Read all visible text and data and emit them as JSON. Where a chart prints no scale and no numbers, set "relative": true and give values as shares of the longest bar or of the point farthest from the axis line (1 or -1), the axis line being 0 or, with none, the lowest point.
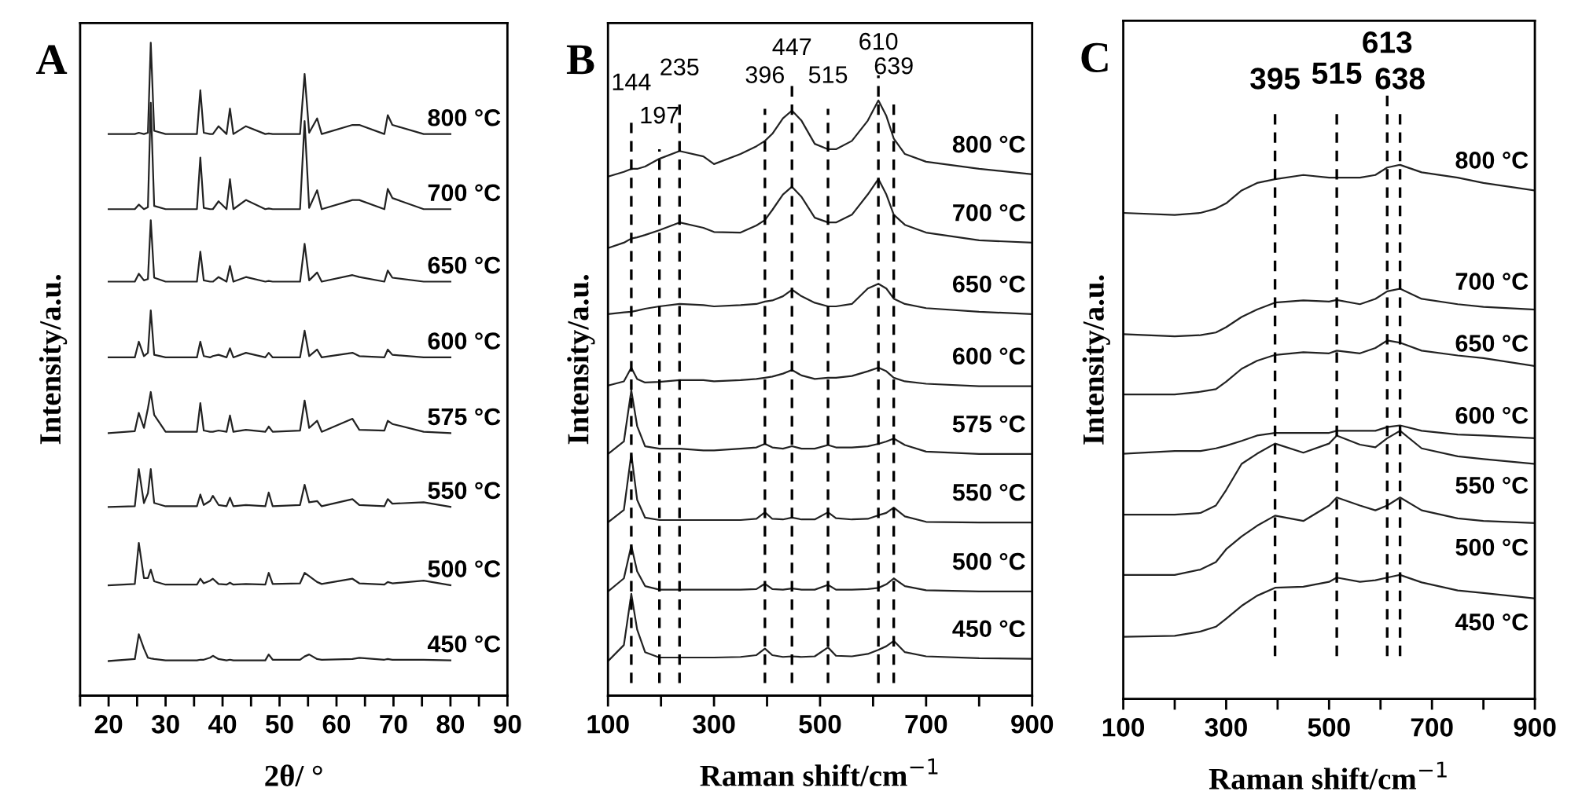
{
  "chart_data": [
    {
      "type": "line",
      "title": "A",
      "xlabel": "2θ/ °",
      "ylabel": "Intensity/a.u.",
      "relative": true,
      "tick_labels": "x",
      "xlim": [
        15,
        90
      ],
      "xticks": [
        {
          "value": 15,
          "label": null
        },
        20,
        {
          "value": 25,
          "label": null
        },
        30,
        {
          "value": 35,
          "label": null
        },
        40,
        {
          "value": 45,
          "label": null
        },
        50,
        {
          "value": 55,
          "label": null
        },
        60,
        {
          "value": 65,
          "label": null
        },
        70,
        {
          "value": 75,
          "label": null
        },
        80,
        {
          "value": 85,
          "label": null
        },
        90
      ],
      "x": [
        20,
        24.6,
        25.3,
        26.2,
        26.9,
        27.4,
        28.0,
        30,
        35.5,
        36.1,
        36.7,
        37.8,
        38.3,
        39.3,
        40.7,
        41.3,
        41.9,
        44.1,
        47.5,
        48.1,
        48.8,
        53.6,
        54.4,
        55.2,
        56.6,
        57.4,
        62.8,
        64.0,
        68.4,
        69.0,
        69.8,
        75.3,
        80
      ],
      "series": [
        {
          "name": "800 °C",
          "color": "#222222",
          "values": [
            0.86,
            0.86,
            0.862,
            0.86,
            0.862,
            1.0,
            0.865,
            0.86,
            0.86,
            0.927,
            0.862,
            0.86,
            0.86,
            0.872,
            0.86,
            0.899,
            0.86,
            0.872,
            0.86,
            0.861,
            0.86,
            0.86,
            0.952,
            0.862,
            0.884,
            0.86,
            0.874,
            0.874,
            0.86,
            0.889,
            0.874,
            0.86,
            0.86
          ]
        },
        {
          "name": "700 °C",
          "color": "#222222",
          "values": [
            0.745,
            0.745,
            0.752,
            0.745,
            0.748,
            0.908,
            0.75,
            0.745,
            0.745,
            0.824,
            0.747,
            0.745,
            0.745,
            0.757,
            0.745,
            0.791,
            0.745,
            0.759,
            0.745,
            0.746,
            0.745,
            0.745,
            0.88,
            0.747,
            0.774,
            0.745,
            0.759,
            0.759,
            0.745,
            0.776,
            0.762,
            0.745,
            0.745
          ]
        },
        {
          "name": "650 °C",
          "color": "#222222",
          "values": [
            0.634,
            0.634,
            0.646,
            0.636,
            0.638,
            0.728,
            0.64,
            0.634,
            0.634,
            0.68,
            0.636,
            0.634,
            0.634,
            0.641,
            0.634,
            0.658,
            0.634,
            0.641,
            0.634,
            0.635,
            0.634,
            0.634,
            0.692,
            0.636,
            0.648,
            0.634,
            0.644,
            0.641,
            0.634,
            0.651,
            0.64,
            0.634,
            0.634
          ]
        },
        {
          "name": "600 °C",
          "color": "#222222",
          "values": [
            0.518,
            0.518,
            0.542,
            0.52,
            0.525,
            0.59,
            0.522,
            0.518,
            0.518,
            0.542,
            0.52,
            0.518,
            0.52,
            0.522,
            0.518,
            0.532,
            0.518,
            0.525,
            0.518,
            0.525,
            0.518,
            0.518,
            0.559,
            0.52,
            0.53,
            0.518,
            0.525,
            0.52,
            0.518,
            0.53,
            0.522,
            0.518,
            0.518
          ]
        },
        {
          "name": "575 °C",
          "color": "#222222",
          "values": [
            0.402,
            0.405,
            0.433,
            0.41,
            0.44,
            0.465,
            0.43,
            0.404,
            0.404,
            0.448,
            0.406,
            0.404,
            0.404,
            0.406,
            0.404,
            0.429,
            0.404,
            0.407,
            0.404,
            0.412,
            0.404,
            0.406,
            0.452,
            0.41,
            0.421,
            0.404,
            0.424,
            0.407,
            0.406,
            0.421,
            0.416,
            0.404,
            0.402
          ]
        },
        {
          "name": "550 °C",
          "color": "#222222",
          "values": [
            0.289,
            0.29,
            0.347,
            0.295,
            0.31,
            0.347,
            0.295,
            0.29,
            0.29,
            0.308,
            0.292,
            0.298,
            0.306,
            0.292,
            0.29,
            0.303,
            0.29,
            0.292,
            0.29,
            0.311,
            0.29,
            0.292,
            0.323,
            0.296,
            0.298,
            0.29,
            0.301,
            0.292,
            0.29,
            0.301,
            0.294,
            0.296,
            0.289
          ]
        },
        {
          "name": "500 °C",
          "color": "#222222",
          "values": [
            0.169,
            0.171,
            0.234,
            0.18,
            0.18,
            0.193,
            0.175,
            0.17,
            0.17,
            0.179,
            0.172,
            0.176,
            0.179,
            0.171,
            0.17,
            0.173,
            0.17,
            0.171,
            0.17,
            0.188,
            0.171,
            0.172,
            0.188,
            0.183,
            0.174,
            0.171,
            0.179,
            0.172,
            0.17,
            0.174,
            0.172,
            0.176,
            0.169
          ]
        },
        {
          "name": "450 °C",
          "color": "#222222",
          "values": [
            0.053,
            0.056,
            0.094,
            0.072,
            0.058,
            0.057,
            0.056,
            0.054,
            0.054,
            0.055,
            0.055,
            0.058,
            0.061,
            0.056,
            0.054,
            0.055,
            0.054,
            0.054,
            0.054,
            0.063,
            0.055,
            0.055,
            0.06,
            0.063,
            0.056,
            0.055,
            0.056,
            0.058,
            0.055,
            0.056,
            0.055,
            0.055,
            0.054
          ]
        }
      ]
    },
    {
      "type": "line",
      "title": "B",
      "xlabel": "Raman shift/cm$^{−1}$",
      "ylabel": "Intensity/a.u.",
      "relative": true,
      "tick_labels": "x",
      "xlim": [
        100,
        900
      ],
      "xticks": [
        100,
        {
          "value": 200,
          "label": null
        },
        300,
        {
          "value": 400,
          "label": null
        },
        500,
        {
          "value": 600,
          "label": null
        },
        700,
        {
          "value": 800,
          "label": null
        },
        900
      ],
      "x": [
        100,
        130,
        144,
        155,
        170,
        197,
        235,
        280,
        300,
        350,
        380,
        396,
        410,
        430,
        447,
        465,
        490,
        515,
        530,
        560,
        590,
        610,
        625,
        639,
        660,
        700,
        800,
        900
      ],
      "ref_lines": [
        {
          "axis": "x",
          "value": 144,
          "label": "144",
          "color": "#000000",
          "line_style": "dashed"
        },
        {
          "axis": "x",
          "value": 197,
          "label": "197",
          "color": "#000000",
          "line_style": "dashed"
        },
        {
          "axis": "x",
          "value": 235,
          "label": "235",
          "color": "#000000",
          "line_style": "dashed"
        },
        {
          "axis": "x",
          "value": 396,
          "label": "396",
          "color": "#000000",
          "line_style": "dashed"
        },
        {
          "axis": "x",
          "value": 447,
          "label": "447",
          "color": "#000000",
          "line_style": "dashed"
        },
        {
          "axis": "x",
          "value": 515,
          "label": "515",
          "color": "#000000",
          "line_style": "dashed"
        },
        {
          "axis": "x",
          "value": 610,
          "label": "610",
          "color": "#000000",
          "line_style": "dashed"
        },
        {
          "axis": "x",
          "value": 639,
          "label": "639",
          "color": "#000000",
          "line_style": "dashed"
        }
      ],
      "series": [
        {
          "name": "800 °C",
          "color": "#222222",
          "values": [
            0.872,
            0.88,
            0.885,
            0.885,
            0.889,
            0.902,
            0.915,
            0.906,
            0.893,
            0.91,
            0.923,
            0.932,
            0.944,
            0.97,
            0.983,
            0.966,
            0.927,
            0.918,
            0.918,
            0.932,
            0.966,
            1.0,
            0.974,
            0.936,
            0.91,
            0.897,
            0.885,
            0.876
          ]
        },
        {
          "name": "700 °C",
          "color": "#222222",
          "values": [
            0.752,
            0.761,
            0.768,
            0.77,
            0.774,
            0.782,
            0.795,
            0.786,
            0.779,
            0.778,
            0.79,
            0.799,
            0.816,
            0.842,
            0.855,
            0.838,
            0.803,
            0.795,
            0.795,
            0.808,
            0.842,
            0.868,
            0.842,
            0.808,
            0.791,
            0.778,
            0.765,
            0.761
          ]
        },
        {
          "name": "650 °C",
          "color": "#222222",
          "values": [
            0.641,
            0.644,
            0.645,
            0.647,
            0.65,
            0.654,
            0.658,
            0.656,
            0.654,
            0.656,
            0.658,
            0.662,
            0.664,
            0.671,
            0.682,
            0.671,
            0.66,
            0.654,
            0.654,
            0.658,
            0.684,
            0.692,
            0.684,
            0.667,
            0.658,
            0.651,
            0.645,
            0.641
          ]
        },
        {
          "name": "600 °C",
          "color": "#222222",
          "values": [
            0.521,
            0.528,
            0.551,
            0.532,
            0.526,
            0.527,
            0.53,
            0.53,
            0.528,
            0.53,
            0.532,
            0.534,
            0.536,
            0.541,
            0.547,
            0.538,
            0.532,
            0.534,
            0.534,
            0.537,
            0.545,
            0.551,
            0.545,
            0.534,
            0.528,
            0.524,
            0.52,
            0.52
          ]
        },
        {
          "name": "575 °C",
          "color": "#222222",
          "values": [
            0.406,
            0.427,
            0.513,
            0.453,
            0.419,
            0.415,
            0.415,
            0.412,
            0.412,
            0.415,
            0.417,
            0.423,
            0.417,
            0.415,
            0.419,
            0.415,
            0.415,
            0.421,
            0.417,
            0.417,
            0.419,
            0.423,
            0.427,
            0.432,
            0.421,
            0.41,
            0.406,
            0.406
          ]
        },
        {
          "name": "550 °C",
          "color": "#222222",
          "values": [
            0.291,
            0.312,
            0.406,
            0.329,
            0.299,
            0.295,
            0.295,
            0.295,
            0.295,
            0.295,
            0.297,
            0.308,
            0.297,
            0.296,
            0.299,
            0.296,
            0.296,
            0.308,
            0.298,
            0.296,
            0.297,
            0.303,
            0.307,
            0.316,
            0.301,
            0.292,
            0.291,
            0.291
          ]
        },
        {
          "name": "500 °C",
          "color": "#222222",
          "values": [
            0.175,
            0.197,
            0.252,
            0.209,
            0.184,
            0.178,
            0.178,
            0.178,
            0.178,
            0.178,
            0.179,
            0.188,
            0.179,
            0.178,
            0.18,
            0.178,
            0.178,
            0.186,
            0.178,
            0.178,
            0.179,
            0.181,
            0.187,
            0.197,
            0.184,
            0.177,
            0.175,
            0.175
          ]
        },
        {
          "name": "450 °C",
          "color": "#222222",
          "values": [
            0.058,
            0.085,
            0.171,
            0.111,
            0.073,
            0.064,
            0.064,
            0.064,
            0.064,
            0.065,
            0.068,
            0.079,
            0.068,
            0.065,
            0.066,
            0.065,
            0.066,
            0.081,
            0.067,
            0.066,
            0.07,
            0.077,
            0.083,
            0.092,
            0.073,
            0.066,
            0.063,
            0.062
          ]
        }
      ]
    },
    {
      "type": "line",
      "title": "C",
      "xlabel": "Raman shift/cm$^{−1}$",
      "ylabel": "Intensity/a.u.",
      "relative": true,
      "tick_labels": "x",
      "xlim": [
        100,
        900
      ],
      "xticks": [
        100,
        {
          "value": 200,
          "label": null
        },
        300,
        {
          "value": 400,
          "label": null
        },
        500,
        {
          "value": 600,
          "label": null
        },
        700,
        {
          "value": 800,
          "label": null
        },
        900
      ],
      "x": [
        100,
        200,
        250,
        280,
        300,
        330,
        360,
        395,
        450,
        500,
        515,
        560,
        590,
        613,
        638,
        680,
        750,
        800,
        900
      ],
      "ref_lines": [
        {
          "axis": "x",
          "value": 395,
          "label": "395",
          "color": "#000000",
          "line_style": "dashed"
        },
        {
          "axis": "x",
          "value": 515,
          "label": "515",
          "color": "#000000",
          "line_style": "dashed"
        },
        {
          "axis": "x",
          "value": 613,
          "label": "613",
          "color": "#000000",
          "line_style": "dashed"
        },
        {
          "axis": "x",
          "value": 638,
          "label": "638",
          "color": "#000000",
          "line_style": "dashed"
        }
      ],
      "series": [
        {
          "name": "800 °C",
          "color": "#222222",
          "values": [
            0.91,
            0.906,
            0.91,
            0.918,
            0.928,
            0.952,
            0.966,
            0.973,
            0.981,
            0.976,
            0.976,
            0.976,
            0.981,
            0.995,
            1.0,
            0.986,
            0.976,
            0.966,
            0.952
          ]
        },
        {
          "name": "700 °C",
          "color": "#222222",
          "values": [
            0.683,
            0.679,
            0.681,
            0.686,
            0.696,
            0.715,
            0.729,
            0.742,
            0.746,
            0.744,
            0.747,
            0.739,
            0.749,
            0.763,
            0.768,
            0.749,
            0.739,
            0.734,
            0.729
          ]
        },
        {
          "name": "650 °C",
          "color": "#222222",
          "values": [
            0.57,
            0.57,
            0.575,
            0.58,
            0.594,
            0.618,
            0.633,
            0.644,
            0.649,
            0.647,
            0.652,
            0.647,
            0.657,
            0.671,
            0.667,
            0.652,
            0.643,
            0.638,
            0.623
          ]
        },
        {
          "name": "600 °C",
          "color": "#222222",
          "values": [
            0.459,
            0.464,
            0.464,
            0.469,
            0.474,
            0.483,
            0.493,
            0.498,
            0.498,
            0.498,
            0.502,
            0.502,
            0.502,
            0.509,
            0.512,
            0.502,
            0.495,
            0.493,
            0.488
          ]
        },
        {
          "name": "550 °C",
          "color": "#222222",
          "values": [
            0.345,
            0.345,
            0.348,
            0.362,
            0.391,
            0.44,
            0.459,
            0.478,
            0.461,
            0.478,
            0.493,
            0.476,
            0.471,
            0.488,
            0.502,
            0.469,
            0.454,
            0.449,
            0.44
          ]
        },
        {
          "name": "500 °C",
          "color": "#222222",
          "values": [
            0.232,
            0.232,
            0.242,
            0.256,
            0.28,
            0.304,
            0.324,
            0.343,
            0.333,
            0.362,
            0.377,
            0.362,
            0.353,
            0.362,
            0.377,
            0.353,
            0.338,
            0.333,
            0.329
          ]
        },
        {
          "name": "450 °C",
          "color": "#222222",
          "values": [
            0.116,
            0.118,
            0.126,
            0.135,
            0.15,
            0.174,
            0.193,
            0.208,
            0.21,
            0.219,
            0.227,
            0.219,
            0.222,
            0.227,
            0.232,
            0.218,
            0.203,
            0.198,
            0.188
          ]
        }
      ]
    }
  ]
}
